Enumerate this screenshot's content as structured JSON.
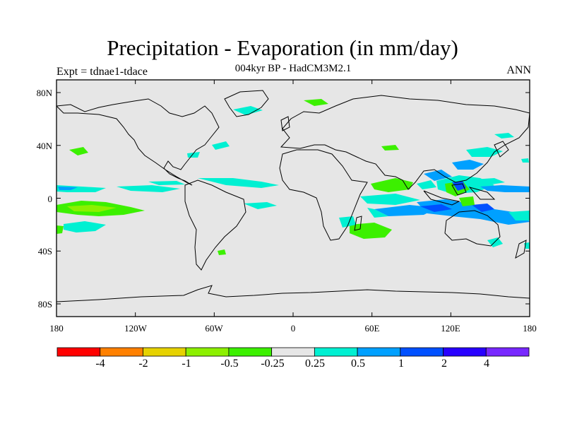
{
  "header": {
    "title": "Precipitation - Evaporation (in mm/day)",
    "subtitle": "004kyr BP - HadCM3M2.1",
    "left_label": "Expt = tdnae1-tdace",
    "right_label": "ANN"
  },
  "axes": {
    "lat_ticks": [
      "80N",
      "40N",
      "0",
      "40S",
      "80S"
    ],
    "lon_ticks": [
      "180",
      "120W",
      "60W",
      "0",
      "60E",
      "120E",
      "180"
    ]
  },
  "colorbar": {
    "colors": [
      "#ff0000",
      "#ff8000",
      "#e6d200",
      "#8cf000",
      "#3cf000",
      "#e6e6e6",
      "#00f0d2",
      "#00a0ff",
      "#0050ff",
      "#2800ff",
      "#7828ff"
    ],
    "labels": [
      "-4",
      "-2",
      "-1",
      "-0.5",
      "-0.25",
      "0.25",
      "0.5",
      "1",
      "2",
      "4"
    ]
  },
  "colors": {
    "ocean_background": "#e6e6e6",
    "coastline": "#000000"
  }
}
